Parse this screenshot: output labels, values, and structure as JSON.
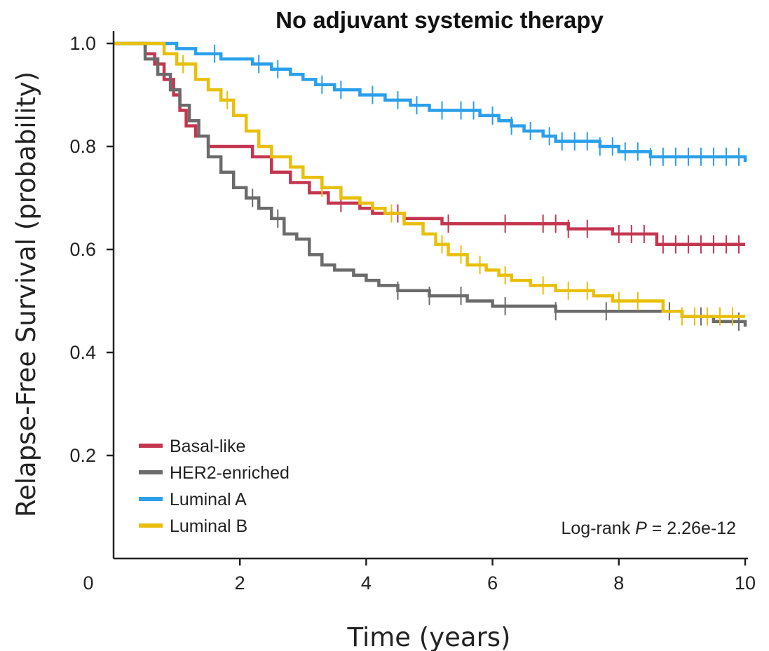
{
  "chart_data": {
    "type": "line",
    "title": "No adjuvant systemic therapy",
    "xlabel": "Time (years)",
    "ylabel": "Relapse-Free Survival (probability)",
    "xlim": [
      0,
      10
    ],
    "ylim": [
      0,
      1.0
    ],
    "x_ticks": [
      "0",
      "2",
      "4",
      "6",
      "8",
      "10"
    ],
    "x_tick_values": [
      0,
      2,
      4,
      6,
      8,
      10
    ],
    "y_ticks": [
      "0.2",
      "0.4",
      "0.6",
      "0.8",
      "1.0"
    ],
    "y_tick_values": [
      0.2,
      0.4,
      0.6,
      0.8,
      1.0
    ],
    "grid": false,
    "legend_position": "bottom-left",
    "annotation": {
      "prefix": "Log-rank ",
      "p_symbol": "P",
      "suffix": " = 2.26e-12"
    },
    "series": [
      {
        "name": "Basal-like",
        "color": "#c4364f",
        "points": [
          [
            0,
            1.0
          ],
          [
            0.3,
            1.0
          ],
          [
            0.5,
            0.98
          ],
          [
            0.65,
            0.96
          ],
          [
            0.8,
            0.93
          ],
          [
            0.95,
            0.9
          ],
          [
            1.05,
            0.87
          ],
          [
            1.15,
            0.84
          ],
          [
            1.3,
            0.82
          ],
          [
            1.5,
            0.8
          ],
          [
            2.0,
            0.8
          ],
          [
            2.2,
            0.78
          ],
          [
            2.5,
            0.75
          ],
          [
            2.8,
            0.73
          ],
          [
            3.1,
            0.71
          ],
          [
            3.4,
            0.69
          ],
          [
            3.7,
            0.69
          ],
          [
            3.9,
            0.68
          ],
          [
            4.1,
            0.67
          ],
          [
            4.6,
            0.66
          ],
          [
            4.9,
            0.66
          ],
          [
            5.2,
            0.65
          ],
          [
            6.9,
            0.65
          ],
          [
            7.2,
            0.64
          ],
          [
            7.6,
            0.64
          ],
          [
            7.9,
            0.63
          ],
          [
            8.5,
            0.63
          ],
          [
            8.6,
            0.61
          ],
          [
            10.0,
            0.61
          ]
        ],
        "censor_x": [
          3.6,
          4.5,
          5.3,
          6.2,
          6.8,
          7.0,
          7.2,
          7.5,
          8.0,
          8.2,
          8.4,
          8.7,
          8.9,
          9.1,
          9.3,
          9.5,
          9.7,
          9.9
        ]
      },
      {
        "name": "HER2-enriched",
        "color": "#6b6b6b",
        "points": [
          [
            0,
            1.0
          ],
          [
            0.3,
            1.0
          ],
          [
            0.5,
            0.97
          ],
          [
            0.7,
            0.94
          ],
          [
            0.9,
            0.91
          ],
          [
            1.05,
            0.88
          ],
          [
            1.2,
            0.85
          ],
          [
            1.35,
            0.82
          ],
          [
            1.5,
            0.78
          ],
          [
            1.7,
            0.75
          ],
          [
            1.9,
            0.72
          ],
          [
            2.1,
            0.7
          ],
          [
            2.3,
            0.68
          ],
          [
            2.5,
            0.66
          ],
          [
            2.7,
            0.63
          ],
          [
            2.9,
            0.62
          ],
          [
            3.1,
            0.59
          ],
          [
            3.3,
            0.57
          ],
          [
            3.5,
            0.56
          ],
          [
            3.8,
            0.55
          ],
          [
            4.0,
            0.54
          ],
          [
            4.2,
            0.53
          ],
          [
            4.5,
            0.52
          ],
          [
            5.0,
            0.51
          ],
          [
            5.6,
            0.5
          ],
          [
            6.0,
            0.49
          ],
          [
            6.5,
            0.49
          ],
          [
            7.0,
            0.48
          ],
          [
            8.5,
            0.48
          ],
          [
            9.0,
            0.47
          ],
          [
            9.5,
            0.46
          ],
          [
            10.0,
            0.45
          ]
        ],
        "censor_x": [
          2.2,
          2.6,
          4.5,
          5.0,
          5.5,
          6.2,
          7.0,
          7.8,
          8.8,
          9.3,
          9.9
        ]
      },
      {
        "name": "Luminal A",
        "color": "#2a9fea",
        "points": [
          [
            0,
            1.0
          ],
          [
            0.7,
            1.0
          ],
          [
            1.0,
            0.99
          ],
          [
            1.3,
            0.98
          ],
          [
            1.7,
            0.97
          ],
          [
            2.2,
            0.96
          ],
          [
            2.5,
            0.95
          ],
          [
            2.8,
            0.94
          ],
          [
            3.0,
            0.93
          ],
          [
            3.2,
            0.92
          ],
          [
            3.5,
            0.91
          ],
          [
            3.9,
            0.9
          ],
          [
            4.3,
            0.89
          ],
          [
            4.7,
            0.88
          ],
          [
            5.0,
            0.87
          ],
          [
            5.4,
            0.87
          ],
          [
            5.8,
            0.86
          ],
          [
            6.1,
            0.85
          ],
          [
            6.3,
            0.84
          ],
          [
            6.5,
            0.83
          ],
          [
            6.8,
            0.82
          ],
          [
            7.0,
            0.81
          ],
          [
            7.5,
            0.81
          ],
          [
            7.7,
            0.8
          ],
          [
            8.0,
            0.79
          ],
          [
            8.5,
            0.78
          ],
          [
            9.0,
            0.78
          ],
          [
            10.0,
            0.77
          ]
        ],
        "censor_x": [
          1.6,
          2.3,
          2.6,
          3.3,
          3.6,
          4.1,
          4.5,
          4.8,
          5.2,
          5.5,
          5.7,
          6.0,
          6.3,
          6.6,
          6.9,
          7.1,
          7.3,
          7.5,
          7.7,
          7.9,
          8.1,
          8.3,
          8.5,
          8.7,
          8.9,
          9.1,
          9.3,
          9.5,
          9.7,
          9.9
        ]
      },
      {
        "name": "Luminal B",
        "color": "#e8bf0a",
        "points": [
          [
            0,
            1.0
          ],
          [
            0.5,
            1.0
          ],
          [
            0.8,
            0.98
          ],
          [
            1.0,
            0.96
          ],
          [
            1.3,
            0.93
          ],
          [
            1.5,
            0.91
          ],
          [
            1.7,
            0.89
          ],
          [
            1.9,
            0.86
          ],
          [
            2.1,
            0.83
          ],
          [
            2.3,
            0.8
          ],
          [
            2.5,
            0.78
          ],
          [
            2.8,
            0.76
          ],
          [
            3.0,
            0.74
          ],
          [
            3.3,
            0.72
          ],
          [
            3.6,
            0.7
          ],
          [
            3.9,
            0.69
          ],
          [
            4.1,
            0.68
          ],
          [
            4.3,
            0.67
          ],
          [
            4.6,
            0.65
          ],
          [
            4.9,
            0.63
          ],
          [
            5.1,
            0.61
          ],
          [
            5.3,
            0.59
          ],
          [
            5.6,
            0.57
          ],
          [
            5.9,
            0.56
          ],
          [
            6.1,
            0.55
          ],
          [
            6.3,
            0.54
          ],
          [
            6.6,
            0.53
          ],
          [
            7.0,
            0.52
          ],
          [
            7.6,
            0.51
          ],
          [
            7.9,
            0.5
          ],
          [
            8.5,
            0.5
          ],
          [
            8.7,
            0.48
          ],
          [
            9.0,
            0.47
          ],
          [
            10.0,
            0.47
          ]
        ],
        "censor_x": [
          1.1,
          1.8,
          3.3,
          4.4,
          5.2,
          5.5,
          5.8,
          6.2,
          6.8,
          7.2,
          7.5,
          8.0,
          8.3,
          9.0,
          9.2,
          9.4,
          9.6,
          9.8
        ]
      }
    ]
  }
}
